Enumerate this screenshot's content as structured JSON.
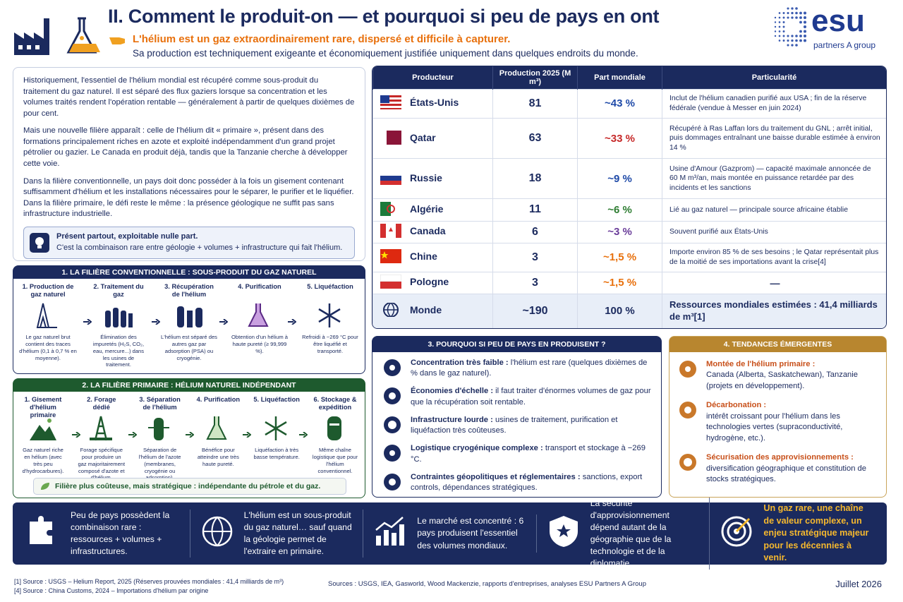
{
  "header": {
    "title": "II. Comment le produit-on — et pourquoi si peu de pays en ont",
    "highlight": "L'hélium est un gaz extraordinairement rare, dispersé et difficile à capturer.",
    "subtitle": "Sa production est techniquement exigeante et économiquement justifiée uniquement dans quelques endroits du monde."
  },
  "logo": {
    "name": "esu",
    "tagline": "partners A group"
  },
  "intro": {
    "paragraphs": [
      "Historiquement, l'essentiel de l'hélium mondial est récupéré comme sous-produit du traitement du gaz naturel. Il est séparé des flux gaziers lorsque sa concentration et les volumes traités rendent l'opération rentable — généralement à partir de quelques dixièmes de pour cent.",
      "Mais une nouvelle filière apparaît : celle de l'hélium dit « primaire », présent dans des formations principalement riches en azote et exploité indépendamment d'un grand projet pétrolier ou gazier. Le Canada en produit déjà, tandis que la Tanzanie cherche à développer cette voie.",
      "Dans la filière conventionnelle, un pays doit donc posséder à la fois un gisement contenant suffisamment d'hélium et les installations nécessaires pour le séparer, le purifier et le liquéfier. Dans la filière primaire, le défi reste le même : la présence géologique ne suffit pas sans infrastructure industrielle."
    ],
    "callout": {
      "title": "Présent partout, exploitable nulle part.",
      "text": "C'est la combinaison rare entre géologie + volumes + infrastructure qui fait l'hélium."
    }
  },
  "conventional": {
    "title": "1. LA FILIÈRE CONVENTIONNELLE : SOUS-PRODUIT DU GAZ NATUREL",
    "steps": [
      {
        "title": "1. Production de gaz naturel",
        "text": "Le gaz naturel brut contient des traces d'hélium (0,1 à 0,7 % en moyenne)."
      },
      {
        "title": "2. Traitement du gaz",
        "text": "Élimination des impuretés (H₂S, CO₂, eau, mercure...) dans les usines de traitement."
      },
      {
        "title": "3. Récupération de l'hélium",
        "text": "L'hélium est séparé des autres gaz par adsorption (PSA) ou cryogénie."
      },
      {
        "title": "4. Purification",
        "text": "Obtention d'un hélium à haute pureté (≥ 99,999 %)."
      },
      {
        "title": "5. Liquéfaction",
        "text": "Refroidi à −269 °C pour être liquéfié et transporté."
      }
    ]
  },
  "primary": {
    "title": "2. LA FILIÈRE PRIMAIRE : HÉLIUM NATUREL INDÉPENDANT",
    "steps": [
      {
        "title": "1. Gisement d'hélium primaire",
        "text": "Gaz naturel riche en hélium (avec très peu d'hydrocarbures)."
      },
      {
        "title": "2. Forage dédié",
        "text": "Forage spécifique pour produire un gaz majoritairement composé d'azote et d'hélium."
      },
      {
        "title": "3. Séparation de l'hélium",
        "text": "Séparation de l'hélium de l'azote (membranes, cryogénie ou adsorption)."
      },
      {
        "title": "4. Purification",
        "text": "Bénéfice pour atteindre une très haute pureté."
      },
      {
        "title": "5. Liquéfaction",
        "text": "Liquéfaction à très basse température."
      },
      {
        "title": "6. Stockage & expédition",
        "text": "Même chaîne logistique que pour l'hélium conventionnel."
      }
    ],
    "note": "Filière plus coûteuse, mais stratégique : indépendante du pétrole et du gaz."
  },
  "table": {
    "headers": [
      "Producteur",
      "Production 2025 (M m³)",
      "Part mondiale",
      "Particularité"
    ],
    "rows": [
      [
        "États-Unis",
        "81",
        "~43 %",
        "Inclut de l'hélium canadien purifié aux USA ; fin de la réserve fédérale (vendue à Messer en juin 2024)"
      ],
      [
        "Qatar",
        "63",
        "~33 %",
        "Récupéré à Ras Laffan lors du traitement du GNL ; arrêt initial, puis dommages entraînant une baisse durable estimée à environ 14 %"
      ],
      [
        "Russie",
        "18",
        "~9 %",
        "Usine d'Amour (Gazprom) — capacité maximale annoncée de 60 M m³/an, mais montée en puissance retardée par des incidents et les sanctions"
      ],
      [
        "Algérie",
        "11",
        "~6 %",
        "Lié au gaz naturel — principale source africaine établie"
      ],
      [
        "Canada",
        "6",
        "~3 %",
        "Souvent purifié aux États-Unis"
      ],
      [
        "Chine",
        "3",
        "~1,5 %",
        "Importe environ 85 % de ses besoins ; le Qatar représentait plus de la moitié de ses importations avant la crise[4]"
      ],
      [
        "Pologne",
        "3",
        "~1,5 %",
        "—"
      ],
      [
        "Monde",
        "~190",
        "100 %",
        "Ressources mondiales estimées : 41,4 milliards de m³[1]"
      ]
    ]
  },
  "why": {
    "title": "3. POURQUOI SI PEU DE PAYS EN PRODUISENT ?",
    "items": [
      {
        "label": "Concentration très faible :",
        "text": "l'hélium est rare (quelques dixièmes de % dans le gaz naturel)."
      },
      {
        "label": "Économies d'échelle :",
        "text": "il faut traiter d'énormes volumes de gaz pour que la récupération soit rentable."
      },
      {
        "label": "Infrastructure lourde :",
        "text": "usines de traitement, purification et liquéfaction très coûteuses."
      },
      {
        "label": "Logistique cryogénique complexe :",
        "text": "transport et stockage à −269 °C."
      },
      {
        "label": "Contraintes géopolitiques et réglementaires :",
        "text": "sanctions, export controls, dépendances stratégiques."
      }
    ]
  },
  "trends": {
    "title": "4. TENDANCES ÉMERGENTES",
    "items": [
      {
        "label": "Montée de l'hélium primaire :",
        "text": "Canada (Alberta, Saskatchewan), Tanzanie (projets en développement)."
      },
      {
        "label": "Décarbonation :",
        "text": "intérêt croissant pour l'hélium dans les technologies vertes (supraconductivité, hydrogène, etc.)."
      },
      {
        "label": "Sécurisation des approvisionnements :",
        "text": "diversification géographique et constitution de stocks stratégiques."
      }
    ]
  },
  "banner": [
    "Peu de pays possèdent la combinaison rare : ressources + volumes + infrastructures.",
    "L'hélium est un sous-produit du gaz naturel… sauf quand la géologie permet de l'extraire en primaire.",
    "Le marché est concentré : 6 pays produisent l'essentiel des volumes mondiaux.",
    "La sécurité d'approvisionnement dépend autant de la géographie que de la technologie et de la diplomatie.",
    "Un gaz rare, une chaîne de valeur complexe, un enjeu stratégique majeur pour les décennies à venir."
  ],
  "footer": {
    "notes": [
      "[1] Source : USGS – Helium Report, 2025 (Réserves prouvées mondiales : 41,4 milliards de m³)",
      "[4] Source : China Customs, 2024 – Importations d'hélium par origine"
    ],
    "sources": "Sources : USGS, IEA, Gasworld, Wood Mackenzie, rapports d'entreprises, analyses ESU Partners A Group",
    "date": "Juillet 2026"
  }
}
